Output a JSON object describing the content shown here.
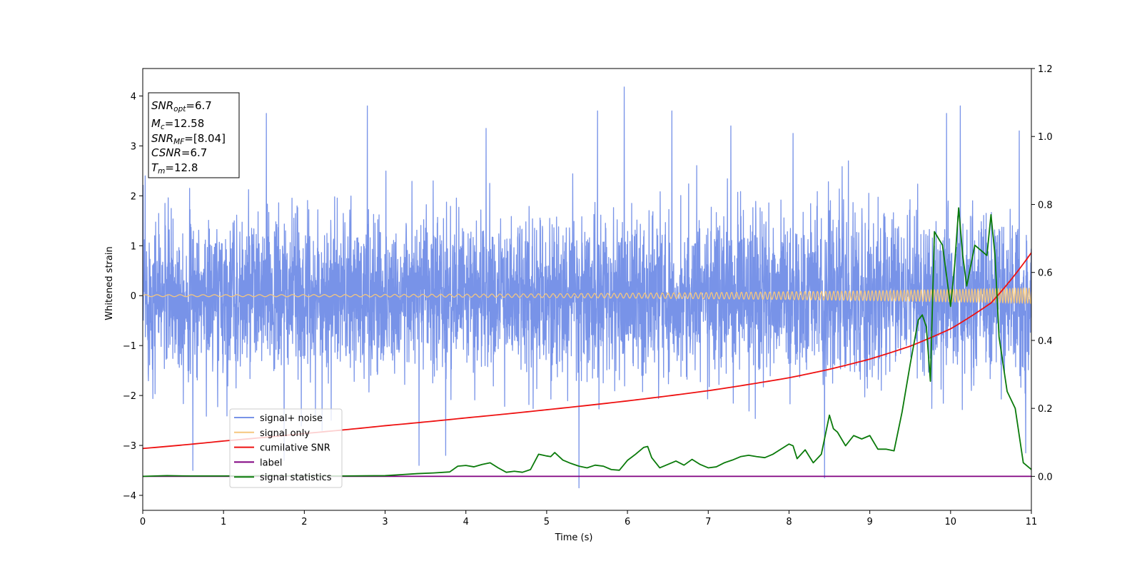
{
  "chart_data": {
    "type": "line",
    "title": "",
    "xlabel": "Time (s)",
    "ylabel": "Whitened strain",
    "ylabel_right": "",
    "xlim": [
      0,
      11
    ],
    "ylim": [
      -4.3,
      4.55
    ],
    "ylim_right": [
      -0.1,
      1.2
    ],
    "xticks": [
      "0",
      "1",
      "2",
      "3",
      "4",
      "5",
      "6",
      "7",
      "8",
      "9",
      "10",
      "11"
    ],
    "yticks": [
      "−4",
      "−3",
      "−2",
      "−1",
      "0",
      "1",
      "2",
      "3",
      "4"
    ],
    "yticks_right": [
      "0.0",
      "0.2",
      "0.4",
      "0.6",
      "0.8",
      "1.0",
      "1.2"
    ],
    "grid": false,
    "legend_position": "lower-left",
    "annotation": {
      "lines": [
        {
          "base": "SNR",
          "sub": "opt",
          "value": "=6.7"
        },
        {
          "base": "M",
          "sub": "c",
          "value": "=12.58"
        },
        {
          "base": "SNR",
          "sub": "MF",
          "value": "=[8.04]"
        },
        {
          "base": "CSNR",
          "sub": "",
          "value": "=6.7"
        },
        {
          "base": "T",
          "sub": "m",
          "value": "=12.8"
        }
      ]
    },
    "series": [
      {
        "name": "signal+ noise",
        "axis": "left",
        "color": "#7893e8",
        "description_stats": {
          "mean": 0,
          "band_half_width": 1.6,
          "max": 4.18,
          "min": -3.85
        },
        "extremes": [
          {
            "x": 0.03,
            "y": 2.4
          },
          {
            "x": 0.62,
            "y": -3.5
          },
          {
            "x": 1.53,
            "y": 3.65
          },
          {
            "x": 1.75,
            "y": -3.3
          },
          {
            "x": 2.78,
            "y": 3.8
          },
          {
            "x": 3.42,
            "y": -3.4
          },
          {
            "x": 3.75,
            "y": -3.2
          },
          {
            "x": 4.25,
            "y": 3.35
          },
          {
            "x": 5.4,
            "y": -3.85
          },
          {
            "x": 5.63,
            "y": 3.7
          },
          {
            "x": 5.96,
            "y": 4.18
          },
          {
            "x": 6.55,
            "y": 3.7
          },
          {
            "x": 7.28,
            "y": 3.4
          },
          {
            "x": 8.05,
            "y": 3.25
          },
          {
            "x": 8.44,
            "y": -3.65
          },
          {
            "x": 9.95,
            "y": 3.65
          },
          {
            "x": 10.12,
            "y": 3.8
          },
          {
            "x": 10.85,
            "y": 3.3
          },
          {
            "x": 10.93,
            "y": -3.15
          }
        ]
      },
      {
        "name": "signal only",
        "axis": "left",
        "color": "#f5c77e",
        "amplitude_start": 0.02,
        "amplitude_end": 0.15,
        "freq_start": 7,
        "freq_end": 30
      },
      {
        "name": "cumilative SNR",
        "axis": "right",
        "color": "#ee1111",
        "x": [
          0,
          1,
          2,
          3,
          4,
          5,
          6,
          7,
          8,
          8.5,
          9,
          9.5,
          10,
          10.5,
          11
        ],
        "y": [
          0.082,
          0.104,
          0.126,
          0.149,
          0.172,
          0.196,
          0.222,
          0.252,
          0.29,
          0.315,
          0.345,
          0.383,
          0.434,
          0.51,
          0.658
        ]
      },
      {
        "name": "label",
        "axis": "right",
        "color": "#800080",
        "x": [
          0,
          11
        ],
        "y": [
          0,
          0
        ]
      },
      {
        "name": "signal statistics",
        "axis": "right",
        "color": "#0a7a0a",
        "x": [
          0,
          0.3,
          0.6,
          1.0,
          1.5,
          2.0,
          2.5,
          3.0,
          3.2,
          3.4,
          3.6,
          3.8,
          3.9,
          4.0,
          4.1,
          4.2,
          4.3,
          4.4,
          4.5,
          4.6,
          4.7,
          4.8,
          4.9,
          5.0,
          5.05,
          5.1,
          5.2,
          5.3,
          5.4,
          5.5,
          5.6,
          5.7,
          5.8,
          5.9,
          6.0,
          6.1,
          6.2,
          6.25,
          6.3,
          6.4,
          6.5,
          6.6,
          6.7,
          6.8,
          6.9,
          7.0,
          7.1,
          7.2,
          7.3,
          7.4,
          7.5,
          7.6,
          7.7,
          7.8,
          7.9,
          8.0,
          8.05,
          8.1,
          8.2,
          8.3,
          8.4,
          8.5,
          8.55,
          8.6,
          8.7,
          8.8,
          8.9,
          9.0,
          9.1,
          9.2,
          9.3,
          9.4,
          9.5,
          9.6,
          9.65,
          9.7,
          9.75,
          9.8,
          9.9,
          10.0,
          10.05,
          10.1,
          10.15,
          10.2,
          10.3,
          10.35,
          10.45,
          10.5,
          10.55,
          10.6,
          10.7,
          10.8,
          10.9,
          11.0
        ],
        "y": [
          0.0,
          0.002,
          0.001,
          0.001,
          0.002,
          0.001,
          0.001,
          0.002,
          0.005,
          0.008,
          0.01,
          0.013,
          0.03,
          0.032,
          0.028,
          0.035,
          0.04,
          0.025,
          0.012,
          0.015,
          0.012,
          0.02,
          0.065,
          0.06,
          0.058,
          0.07,
          0.048,
          0.038,
          0.03,
          0.025,
          0.033,
          0.03,
          0.02,
          0.018,
          0.047,
          0.065,
          0.085,
          0.088,
          0.055,
          0.025,
          0.035,
          0.045,
          0.033,
          0.05,
          0.035,
          0.025,
          0.028,
          0.04,
          0.048,
          0.058,
          0.062,
          0.058,
          0.055,
          0.065,
          0.08,
          0.095,
          0.09,
          0.052,
          0.078,
          0.04,
          0.065,
          0.18,
          0.14,
          0.13,
          0.09,
          0.12,
          0.11,
          0.12,
          0.08,
          0.08,
          0.075,
          0.19,
          0.33,
          0.46,
          0.475,
          0.44,
          0.28,
          0.72,
          0.68,
          0.5,
          0.62,
          0.79,
          0.65,
          0.56,
          0.68,
          0.67,
          0.65,
          0.77,
          0.65,
          0.41,
          0.25,
          0.2,
          0.04,
          0.02
        ]
      }
    ]
  }
}
